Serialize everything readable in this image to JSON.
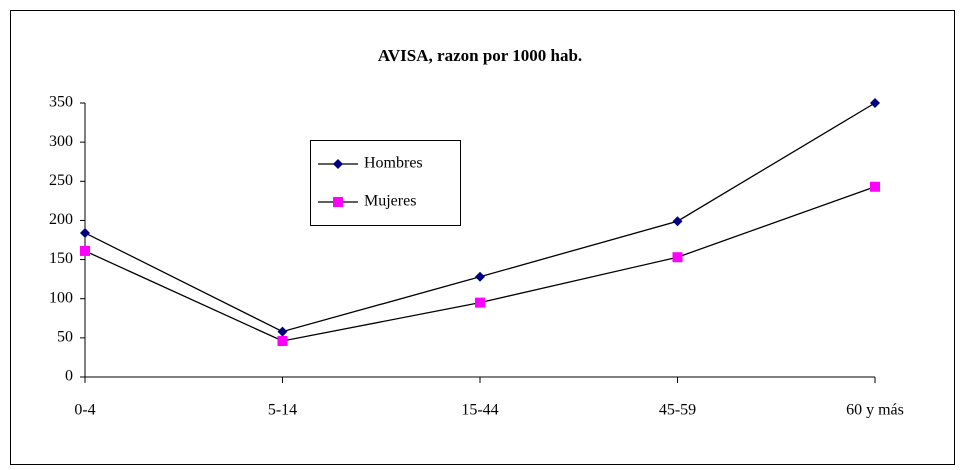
{
  "chart_data": {
    "type": "line",
    "title": "AVISA, razon por 1000 hab.",
    "categories": [
      "0-4",
      "5-14",
      "15-44",
      "45-59",
      "60 y más"
    ],
    "series": [
      {
        "name": "Hombres",
        "color": "#000080",
        "marker": "diamond",
        "values": [
          184,
          58,
          128,
          199,
          350
        ]
      },
      {
        "name": "Mujeres",
        "color": "#ff00ff",
        "marker": "square",
        "values": [
          161,
          46,
          95,
          153,
          243
        ]
      }
    ],
    "ylim": [
      0,
      350
    ],
    "yticks": [
      0,
      50,
      100,
      150,
      200,
      250,
      300,
      350
    ],
    "grid": false
  }
}
